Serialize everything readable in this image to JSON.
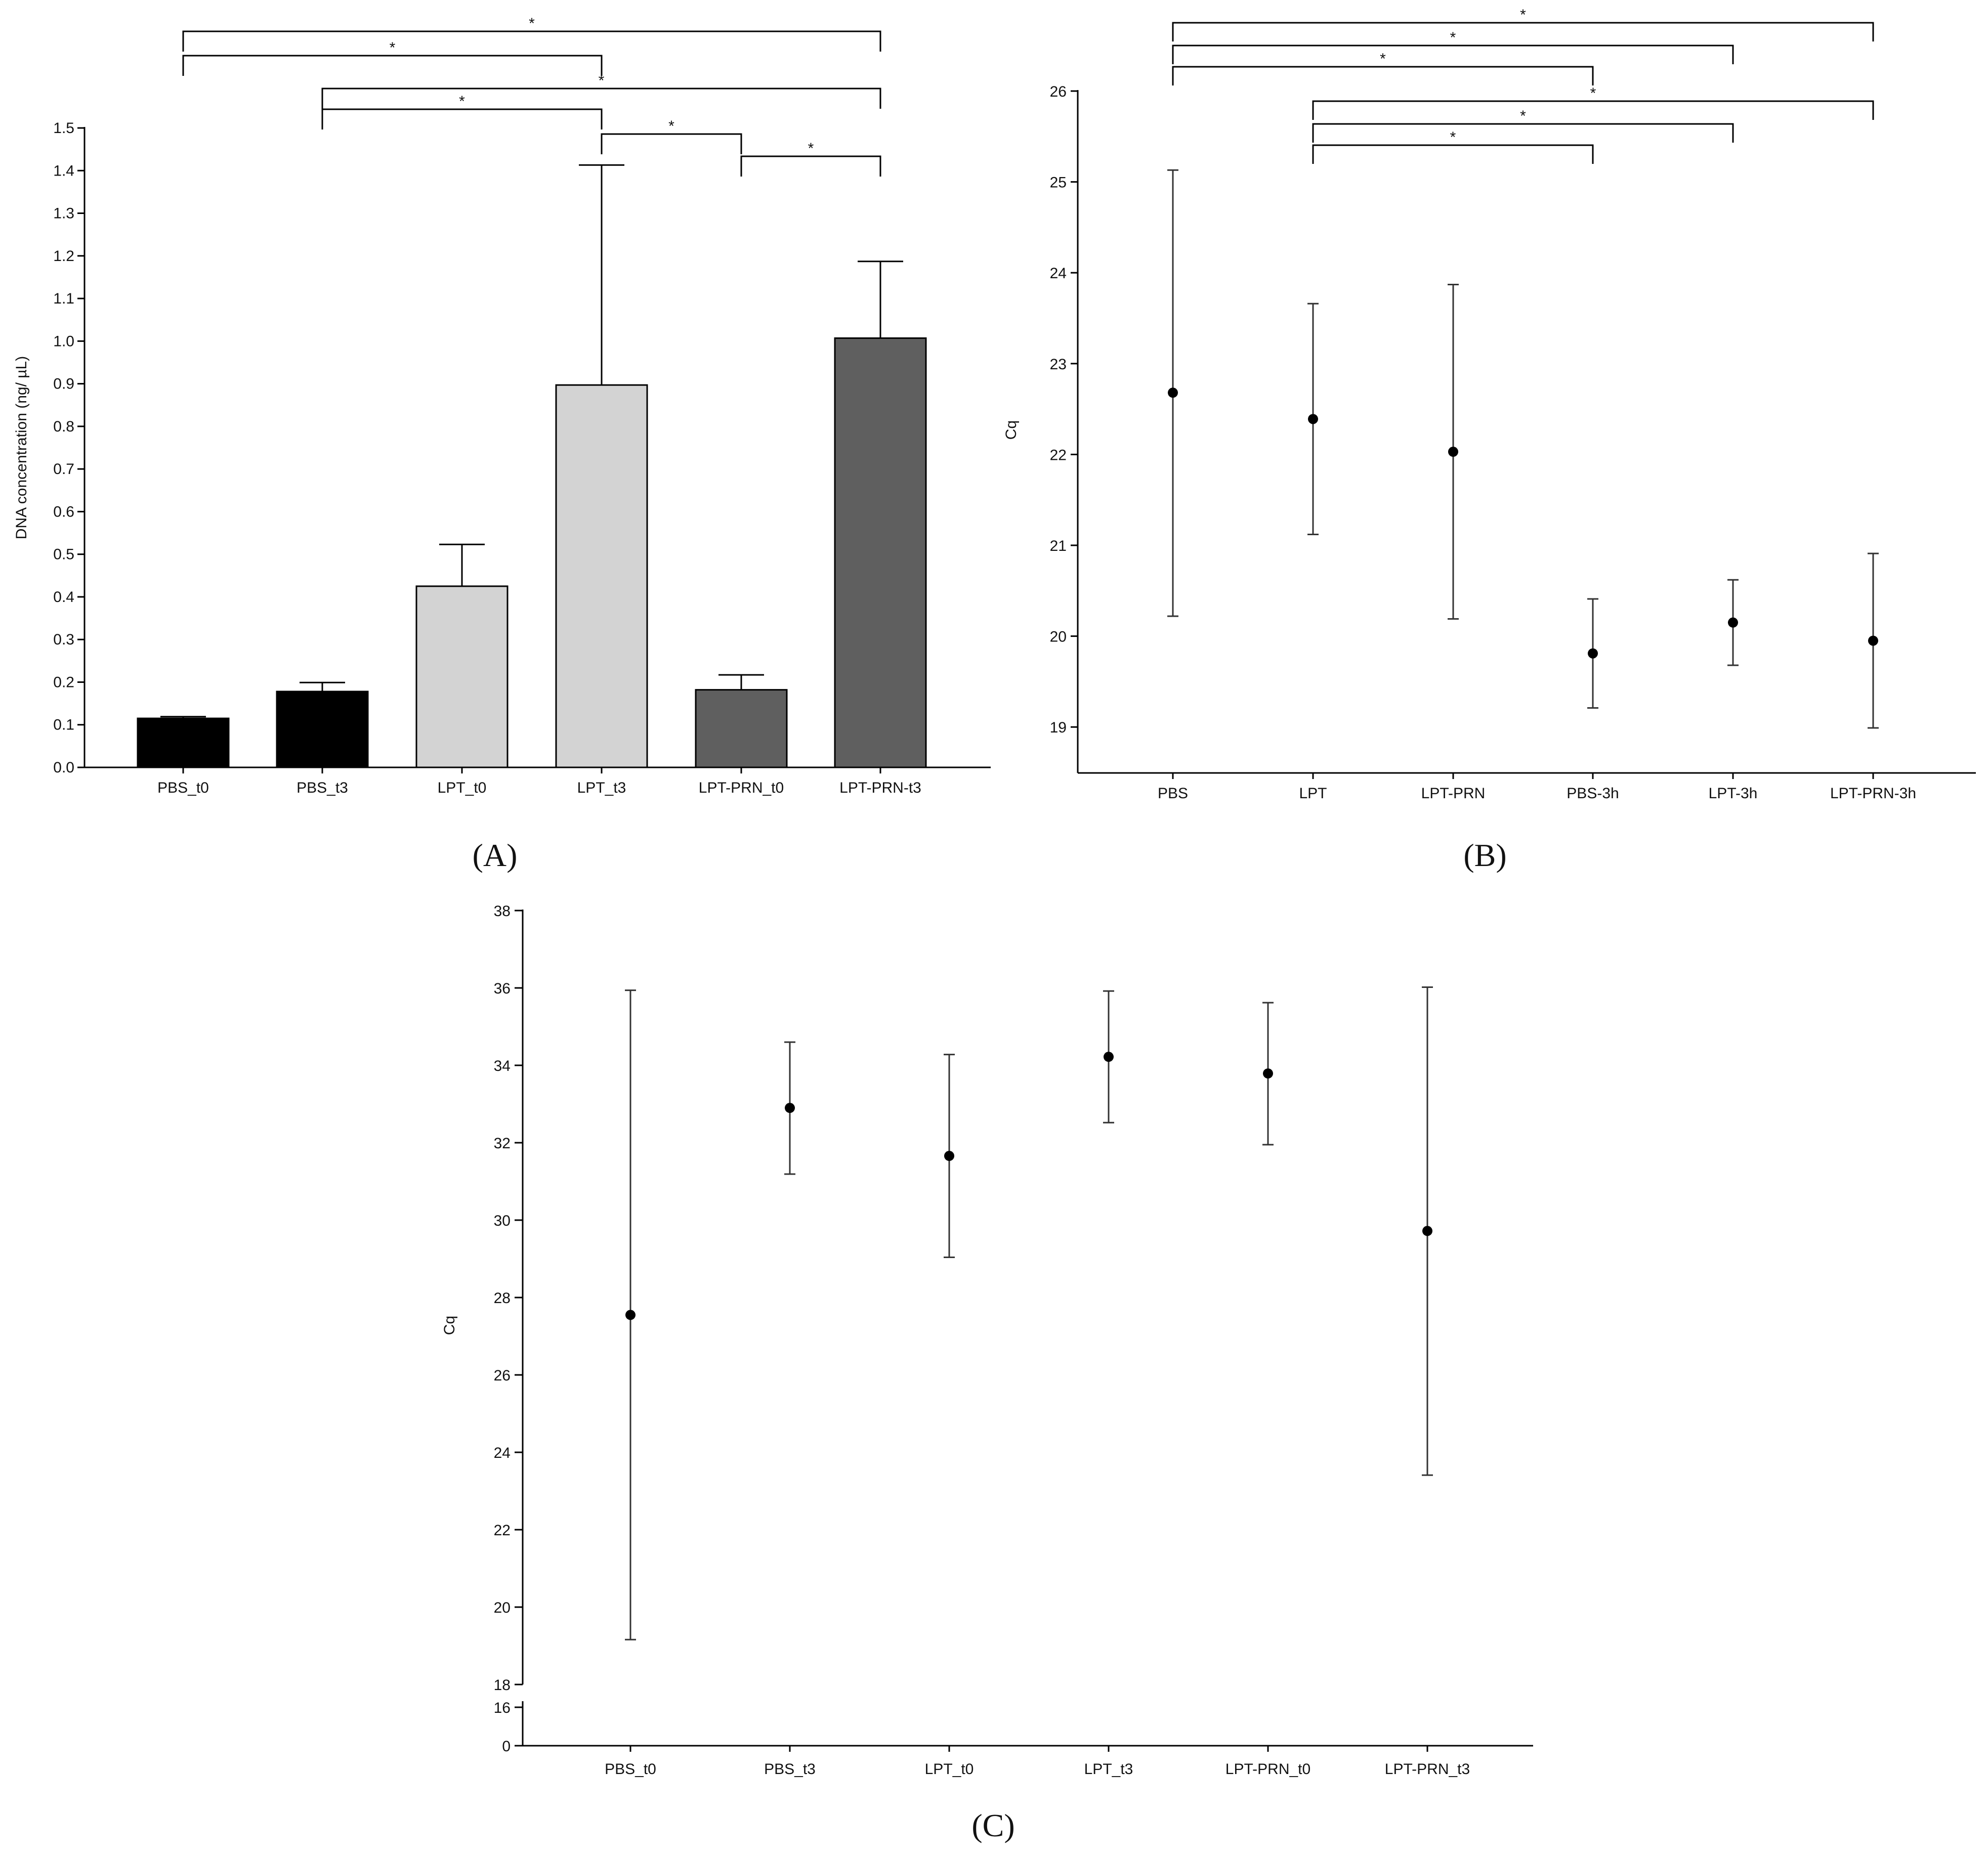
{
  "chart_data": [
    {
      "panel": "(A)",
      "type": "bar",
      "ylabel": "DNA concentration (ng/ µL)",
      "ylim": [
        0,
        1.5
      ],
      "yticks": [
        "0.0",
        "0.1",
        "0.2",
        "0.3",
        "0.4",
        "0.5",
        "0.6",
        "0.7",
        "0.8",
        "0.9",
        "1.0",
        "1.1",
        "1.2",
        "1.3",
        "1.4",
        "1.5"
      ],
      "categories": [
        "PBS_t0",
        "PBS_t3",
        "LPT_t0",
        "LPT_t3",
        "LPT-PRN_t0",
        "LPT-PRN-t3"
      ],
      "values": [
        0.115,
        0.178,
        0.425,
        0.897,
        0.182,
        1.007
      ],
      "error_upper": [
        0.119,
        0.199,
        0.523,
        1.413,
        0.217,
        1.187
      ],
      "bar_colors": [
        "#000000",
        "#000000",
        "#d3d3d3",
        "#d3d3d3",
        "#5f5f5f",
        "#5f5f5f"
      ],
      "significance": [
        {
          "from": 0,
          "to": 5,
          "label": "*"
        },
        {
          "from": 0,
          "to": 3,
          "label": "*"
        },
        {
          "from": 1,
          "to": 5,
          "label": "*"
        },
        {
          "from": 1,
          "to": 3,
          "label": "*"
        },
        {
          "from": 3,
          "to": 4,
          "label": "*"
        },
        {
          "from": 4,
          "to": 5,
          "label": "*"
        }
      ]
    },
    {
      "panel": "(B)",
      "type": "scatter",
      "ylabel": "Cq",
      "ylim": [
        18.5,
        26
      ],
      "yticks": [
        "19",
        "20",
        "21",
        "22",
        "23",
        "24",
        "25",
        "26"
      ],
      "categories": [
        "PBS",
        "LPT",
        "LPT-PRN",
        "PBS-3h",
        "LPT-3h",
        "LPT-PRN-3h"
      ],
      "values": [
        22.68,
        22.39,
        22.03,
        19.81,
        20.15,
        19.95
      ],
      "error_lower": [
        20.22,
        21.12,
        20.19,
        19.21,
        19.68,
        18.99
      ],
      "error_upper": [
        25.13,
        23.66,
        23.87,
        20.41,
        20.62,
        20.91
      ],
      "significance": [
        {
          "from": 0,
          "to": 5,
          "label": "*"
        },
        {
          "from": 0,
          "to": 4,
          "label": "*"
        },
        {
          "from": 0,
          "to": 3,
          "label": "*"
        },
        {
          "from": 1,
          "to": 5,
          "label": "*"
        },
        {
          "from": 1,
          "to": 4,
          "label": "*"
        },
        {
          "from": 1,
          "to": 3,
          "label": "*"
        }
      ]
    },
    {
      "panel": "(C)",
      "type": "scatter",
      "ylabel": "Cq",
      "ylim": [
        0,
        38
      ],
      "axis_break": [
        16,
        18
      ],
      "yticks": [
        "0",
        "16",
        "18",
        "20",
        "22",
        "24",
        "26",
        "28",
        "30",
        "32",
        "34",
        "36",
        "38"
      ],
      "categories": [
        "PBS_t0",
        "PBS_t3",
        "LPT_t0",
        "LPT_t3",
        "LPT-PRN_t0",
        "LPT-PRN_t3"
      ],
      "values": [
        27.55,
        32.9,
        31.66,
        34.22,
        33.79,
        29.72
      ],
      "error_lower": [
        19.16,
        31.19,
        29.04,
        32.52,
        31.95,
        23.41
      ],
      "error_upper": [
        35.94,
        34.6,
        34.28,
        35.92,
        35.62,
        36.02
      ]
    }
  ]
}
